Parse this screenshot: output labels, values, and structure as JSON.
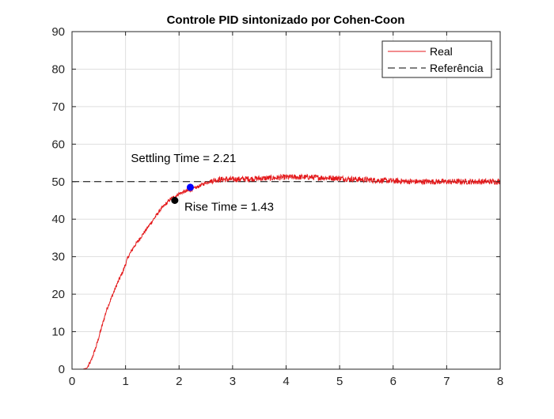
{
  "chart_data": {
    "type": "line",
    "title": "Controle PID sintonizado por Cohen-Coon",
    "xlabel": "",
    "ylabel": "",
    "xlim": [
      0,
      8
    ],
    "ylim": [
      0,
      90
    ],
    "xticks": [
      0,
      1,
      2,
      3,
      4,
      5,
      6,
      7,
      8
    ],
    "yticks": [
      0,
      10,
      20,
      30,
      40,
      50,
      60,
      70,
      80,
      90
    ],
    "grid": true,
    "legend_position": "top-right",
    "series": [
      {
        "name": "Real",
        "color": "#e41a1c",
        "style": "solid",
        "x": [
          0,
          0.2,
          0.28,
          0.35,
          0.45,
          0.55,
          0.65,
          0.75,
          0.85,
          0.95,
          1.05,
          1.15,
          1.25,
          1.35,
          1.45,
          1.55,
          1.65,
          1.75,
          1.85,
          1.92,
          2.0,
          2.1,
          2.21,
          2.3,
          2.4,
          2.5,
          2.6,
          2.7,
          2.8,
          2.9,
          3.0,
          3.2,
          3.4,
          3.6,
          3.8,
          4.0,
          4.2,
          4.4,
          4.6,
          4.8,
          5.0,
          5.2,
          5.4,
          5.6,
          5.8,
          6.0,
          6.2,
          6.4,
          6.6,
          6.8,
          7.0,
          7.2,
          7.4,
          7.6,
          7.8,
          8.0
        ],
        "y": [
          0,
          0,
          0.3,
          2,
          6,
          11,
          16,
          19.5,
          23,
          26,
          30,
          32.5,
          34.5,
          36.5,
          38.5,
          40.5,
          42.5,
          44,
          45.5,
          46,
          46.8,
          47.3,
          47.7,
          48.3,
          49,
          49.7,
          50.2,
          50.5,
          50.6,
          50.6,
          50.6,
          50.7,
          50.8,
          50.9,
          51.0,
          51.2,
          51.2,
          51.2,
          51.1,
          51.0,
          50.9,
          50.7,
          50.6,
          50.4,
          50.3,
          50.2,
          50.1,
          50.0,
          50.0,
          50.0,
          50.0,
          50.0,
          50.0,
          50.0,
          50.0,
          50.0
        ]
      },
      {
        "name": "Referência",
        "color": "#000000",
        "style": "dashed",
        "x": [
          0,
          8
        ],
        "y": [
          50,
          50
        ]
      }
    ],
    "markers": [
      {
        "x": 1.92,
        "y": 45.0,
        "color": "#000000"
      },
      {
        "x": 2.21,
        "y": 48.5,
        "color": "#0000ff"
      }
    ],
    "annotations": [
      {
        "text": "Settling Time = 2.21",
        "x": 1.1,
        "y": 55.2,
        "anchor": "start"
      },
      {
        "text": "Rise Time = 1.43",
        "x": 2.1,
        "y": 42.3,
        "anchor": "start"
      }
    ]
  }
}
